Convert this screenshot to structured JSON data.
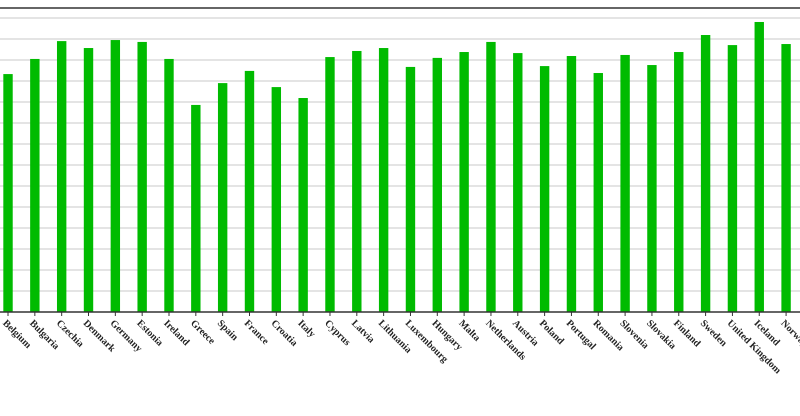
{
  "chart_data": {
    "type": "bar",
    "categories": [
      "Belgium",
      "Bulgaria",
      "Czechia",
      "Denmark",
      "Germany",
      "Estonia",
      "Ireland",
      "Greece",
      "Spain",
      "France",
      "Croatia",
      "Italy",
      "Cyprus",
      "Latvia",
      "Lithuania",
      "Luxembourg",
      "Hungary",
      "Malta",
      "Netherlands",
      "Austria",
      "Poland",
      "Portugal",
      "Romania",
      "Slovenia",
      "Slovakia",
      "Finland",
      "Sweden",
      "United Kingdom",
      "Iceland",
      "Norway"
    ],
    "values": [
      11.33,
      12.05,
      12.9,
      12.57,
      12.95,
      12.86,
      12.05,
      9.86,
      10.9,
      11.48,
      10.71,
      10.19,
      12.14,
      12.43,
      12.57,
      11.67,
      12.1,
      12.38,
      12.86,
      12.33,
      11.71,
      12.19,
      11.38,
      12.24,
      11.76,
      12.38,
      13.19,
      12.71,
      13.81,
      12.76
    ],
    "color": "#00bb00",
    "ylim": [
      0,
      14.5
    ],
    "yticks": [
      0,
      1,
      2,
      3,
      4,
      5,
      6,
      7,
      8,
      9,
      10,
      11,
      12,
      13,
      14
    ],
    "grid": true
  }
}
